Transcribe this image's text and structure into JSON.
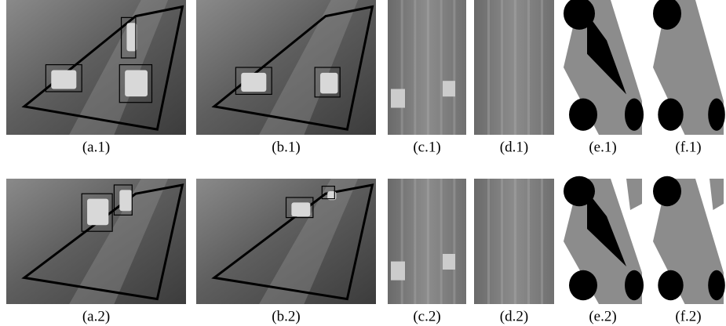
{
  "figure": {
    "captions": [
      [
        "(a.1)",
        "(b.1)",
        "(c.1)",
        "(d.1)",
        "(e.1)",
        "(f.1)"
      ],
      [
        "(a.2)",
        "(b.2)",
        "(c.2)",
        "(d.2)",
        "(e.2)",
        "(f.2)"
      ]
    ]
  }
}
